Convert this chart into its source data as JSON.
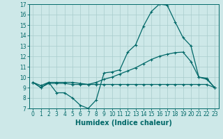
{
  "xlabel": "Humidex (Indice chaleur)",
  "bg_color": "#cde8e8",
  "line_color": "#006868",
  "grid_color": "#a8cccc",
  "spine_color": "#006868",
  "xlim": [
    -0.5,
    23.5
  ],
  "ylim": [
    7,
    17
  ],
  "yticks": [
    7,
    8,
    9,
    10,
    11,
    12,
    13,
    14,
    15,
    16,
    17
  ],
  "xticks": [
    0,
    1,
    2,
    3,
    4,
    5,
    6,
    7,
    8,
    9,
    10,
    11,
    12,
    13,
    14,
    15,
    16,
    17,
    18,
    19,
    20,
    21,
    22,
    23
  ],
  "line1_y": [
    9.5,
    9.0,
    9.5,
    8.5,
    8.5,
    8.0,
    7.3,
    7.0,
    7.8,
    10.4,
    10.5,
    10.7,
    12.4,
    13.1,
    14.9,
    16.3,
    17.0,
    16.9,
    15.3,
    13.8,
    13.0,
    10.0,
    9.9,
    9.0
  ],
  "line2_y": [
    9.5,
    9.2,
    9.5,
    9.5,
    9.5,
    9.5,
    9.4,
    9.3,
    9.5,
    9.8,
    10.0,
    10.3,
    10.6,
    10.9,
    11.3,
    11.7,
    12.0,
    12.2,
    12.35,
    12.4,
    11.5,
    10.0,
    9.8,
    9.0
  ],
  "line3_y": [
    9.5,
    9.0,
    9.4,
    9.4,
    9.4,
    9.3,
    9.3,
    9.3,
    9.3,
    9.3,
    9.3,
    9.3,
    9.3,
    9.3,
    9.3,
    9.3,
    9.3,
    9.3,
    9.3,
    9.3,
    9.3,
    9.3,
    9.3,
    9.0
  ],
  "tick_fontsize": 5.5,
  "xlabel_fontsize": 7.0,
  "xlabel_fontweight": "bold",
  "linewidth": 0.9,
  "marker_size": 3.0
}
